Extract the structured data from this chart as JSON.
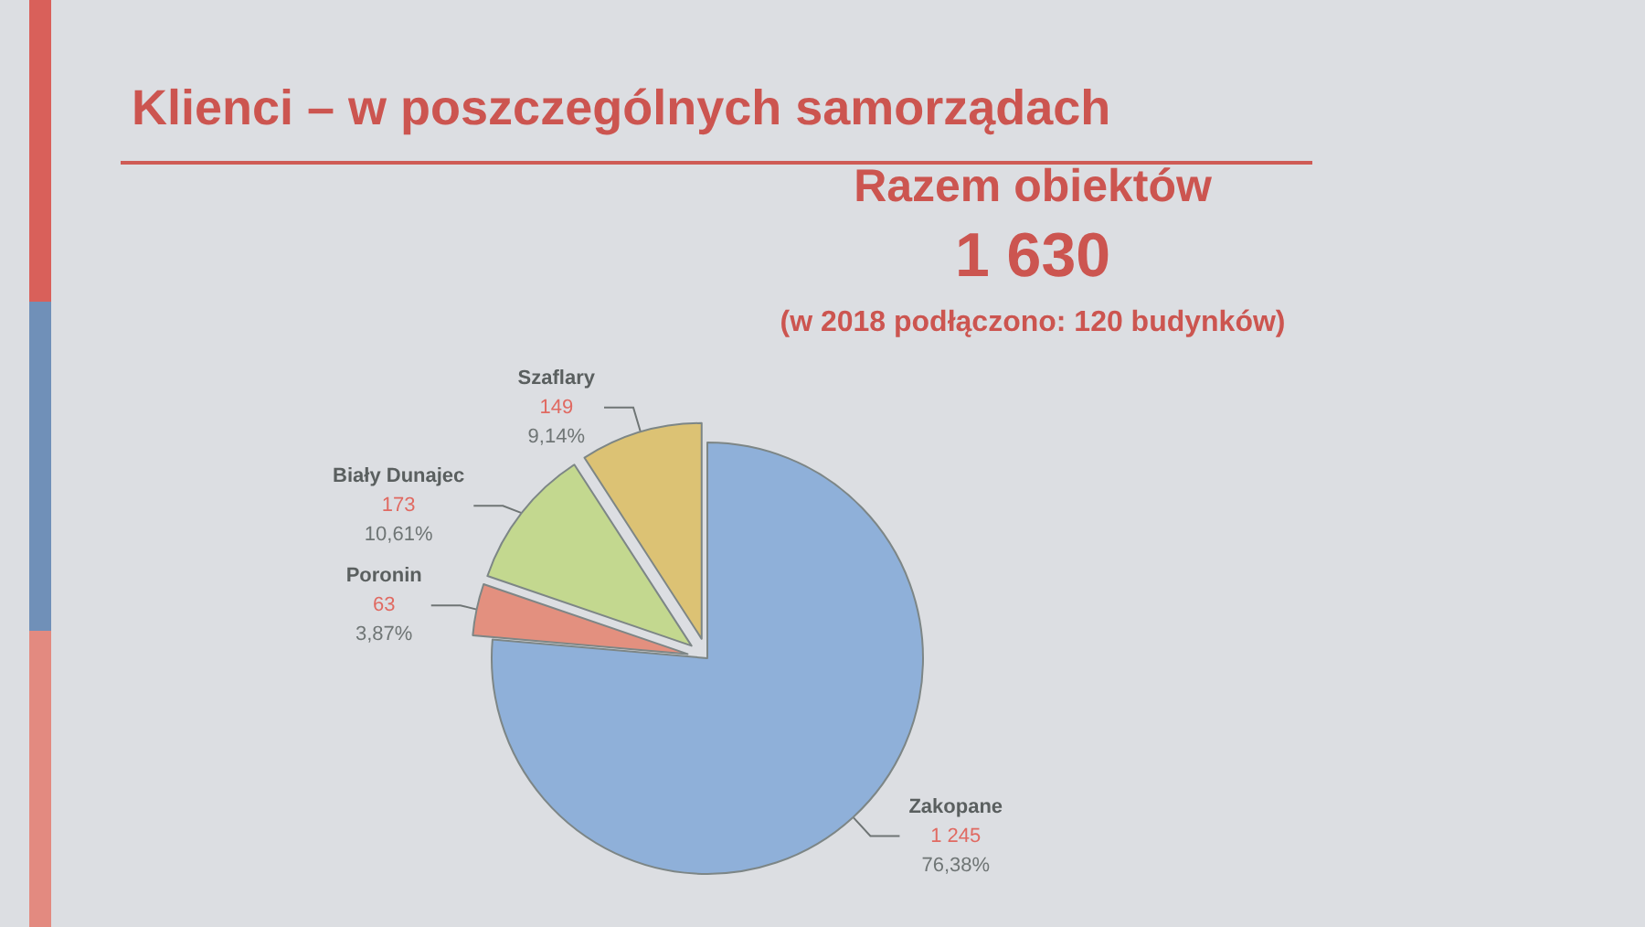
{
  "chart_data": {
    "type": "pie",
    "title": "Klienci – w poszczególnych samorządach",
    "subtitle": "Razem obiektów",
    "annotations": [
      "1 630",
      "(w 2018 podłączono: 120 budynków)"
    ],
    "categories": [
      "Zakopane",
      "Poronin",
      "Biały Dunajec",
      "Szaflary"
    ],
    "values": [
      1245,
      63,
      173,
      149
    ],
    "colors": [
      "#8fb0d9",
      "#e3907f",
      "#c3d88f",
      "#dcc274"
    ],
    "value_labels": [
      "1 245\n76,38%",
      "63\n3,87%",
      "173\n10,61%",
      "149\n9,14%"
    ]
  }
}
